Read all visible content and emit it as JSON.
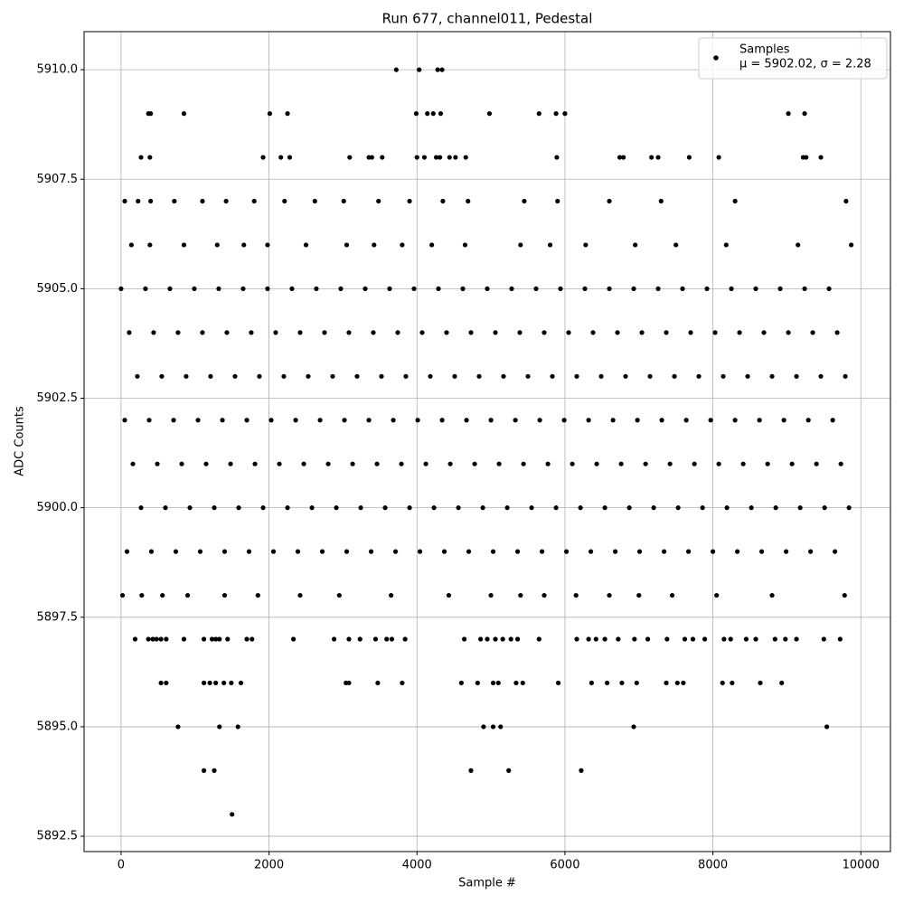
{
  "chart_data": {
    "type": "scatter",
    "title": "Run 677, channel011, Pedestal",
    "x_label": "Sample #",
    "y_label": "ADC Counts",
    "legend_note": "μ = 5902.02, σ = 2.28",
    "legend_position": "upper right",
    "grid": true,
    "xlim": [
      -500,
      10400
    ],
    "ylim": [
      5892.15,
      5910.87
    ],
    "xticks": [
      0,
      2000,
      4000,
      6000,
      8000,
      10000
    ],
    "yticks": [
      {
        "value": 5892.5,
        "label": "5892.5"
      },
      {
        "value": 5895,
        "label": "5895.0"
      },
      {
        "value": 5897.5,
        "label": "5897.5"
      },
      {
        "value": 5900,
        "label": "5900.0"
      },
      {
        "value": 5902.5,
        "label": "5902.5"
      },
      {
        "value": 5905,
        "label": "5905.0"
      },
      {
        "value": 5907.5,
        "label": "5907.5"
      },
      {
        "value": 5910,
        "label": "5910.0"
      }
    ],
    "x": [
      3720,
      4030,
      4280,
      4340,
      370,
      400,
      850,
      2010,
      2250,
      3990,
      4140,
      4220,
      4320,
      4980,
      5650,
      5880,
      6000,
      9020,
      9240,
      270,
      390,
      1920,
      2160,
      2280,
      3090,
      3350,
      3390,
      3530,
      4000,
      4100,
      4260,
      4310,
      4440,
      4520,
      4660,
      5890,
      6740,
      6790,
      7170,
      7260,
      7680,
      8080,
      9220,
      9260,
      9460,
      50,
      230,
      400,
      720,
      1100,
      1420,
      1800,
      2210,
      2620,
      3010,
      3480,
      3900,
      4350,
      4690,
      5450,
      5900,
      6600,
      7300,
      8300,
      9800,
      140,
      390,
      850,
      1300,
      1660,
      1980,
      2500,
      3050,
      3420,
      3800,
      4200,
      4650,
      5400,
      5800,
      6280,
      6950,
      7500,
      8180,
      9150,
      9870,
      0,
      330,
      660,
      990,
      1320,
      1650,
      1980,
      2310,
      2640,
      2970,
      3300,
      3630,
      3960,
      4290,
      4620,
      4950,
      5280,
      5610,
      5940,
      6270,
      6600,
      6930,
      7260,
      7590,
      7920,
      8250,
      8580,
      8910,
      9240,
      9570,
      110,
      440,
      770,
      1100,
      1430,
      1760,
      2090,
      2420,
      2750,
      3080,
      3410,
      3740,
      4070,
      4400,
      4730,
      5060,
      5390,
      5720,
      6050,
      6380,
      6710,
      7040,
      7370,
      7700,
      8030,
      8360,
      8690,
      9020,
      9350,
      9680,
      220,
      550,
      880,
      1210,
      1540,
      1870,
      2200,
      2530,
      2860,
      3190,
      3520,
      3850,
      4180,
      4510,
      4840,
      5170,
      5500,
      5830,
      6160,
      6490,
      6820,
      7150,
      7480,
      7810,
      8140,
      8470,
      8800,
      9130,
      9460,
      9790,
      50,
      380,
      710,
      1040,
      1370,
      1700,
      2030,
      2360,
      2690,
      3020,
      3350,
      3680,
      4010,
      4340,
      4670,
      5000,
      5330,
      5660,
      5990,
      6320,
      6650,
      6980,
      7310,
      7640,
      7970,
      8300,
      8630,
      8960,
      9290,
      9620,
      160,
      490,
      820,
      1150,
      1480,
      1810,
      2140,
      2470,
      2800,
      3130,
      3460,
      3790,
      4120,
      4450,
      4780,
      5110,
      5440,
      5770,
      6100,
      6430,
      6760,
      7090,
      7420,
      7750,
      8080,
      8410,
      8740,
      9070,
      9400,
      9730,
      270,
      600,
      930,
      1260,
      1590,
      1920,
      2250,
      2580,
      2910,
      3240,
      3570,
      3900,
      4230,
      4560,
      4890,
      5220,
      5550,
      5880,
      6210,
      6540,
      6870,
      7200,
      7530,
      7860,
      8190,
      8520,
      8850,
      9180,
      9510,
      9840,
      80,
      410,
      740,
      1070,
      1400,
      1730,
      2060,
      2390,
      2720,
      3050,
      3380,
      3710,
      4040,
      4370,
      4700,
      5030,
      5360,
      5690,
      6020,
      6350,
      6680,
      7010,
      7340,
      7670,
      8000,
      8330,
      8660,
      8990,
      9320,
      9650,
      20,
      280,
      560,
      900,
      1400,
      1850,
      2420,
      2950,
      3650,
      4430,
      5000,
      5400,
      5720,
      6150,
      6600,
      7000,
      7450,
      8050,
      8800,
      9780,
      190,
      370,
      430,
      480,
      540,
      610,
      850,
      1120,
      1230,
      1280,
      1330,
      1440,
      1700,
      1770,
      2330,
      2880,
      3080,
      3230,
      3440,
      3590,
      3660,
      3840,
      4640,
      4860,
      4950,
      5060,
      5160,
      5270,
      5360,
      5650,
      6160,
      6320,
      6420,
      6540,
      6720,
      6940,
      7120,
      7380,
      7620,
      7730,
      7890,
      8150,
      8240,
      8450,
      8580,
      8840,
      8980,
      9130,
      9500,
      9720,
      540,
      610,
      1120,
      1200,
      1280,
      1390,
      1490,
      1620,
      3040,
      3080,
      3470,
      3800,
      4600,
      4820,
      5030,
      5100,
      5340,
      5430,
      5910,
      6360,
      6570,
      6770,
      6970,
      7370,
      7520,
      7600,
      8130,
      8260,
      8640,
      8930,
      770,
      1330,
      1580,
      4900,
      5030,
      5130,
      6930,
      9540,
      1120,
      1260,
      4730,
      5240,
      6220,
      1500
    ],
    "series": [
      {
        "name": "Samples",
        "color": "#000000",
        "values": [
          5910,
          5910,
          5910,
          5910,
          5909,
          5909,
          5909,
          5909,
          5909,
          5909,
          5909,
          5909,
          5909,
          5909,
          5909,
          5909,
          5909,
          5909,
          5909,
          5908,
          5908,
          5908,
          5908,
          5908,
          5908,
          5908,
          5908,
          5908,
          5908,
          5908,
          5908,
          5908,
          5908,
          5908,
          5908,
          5908,
          5908,
          5908,
          5908,
          5908,
          5908,
          5908,
          5908,
          5908,
          5908,
          5907,
          5907,
          5907,
          5907,
          5907,
          5907,
          5907,
          5907,
          5907,
          5907,
          5907,
          5907,
          5907,
          5907,
          5907,
          5907,
          5907,
          5907,
          5907,
          5907,
          5906,
          5906,
          5906,
          5906,
          5906,
          5906,
          5906,
          5906,
          5906,
          5906,
          5906,
          5906,
          5906,
          5906,
          5906,
          5906,
          5906,
          5906,
          5906,
          5906,
          5905,
          5905,
          5905,
          5905,
          5905,
          5905,
          5905,
          5905,
          5905,
          5905,
          5905,
          5905,
          5905,
          5905,
          5905,
          5905,
          5905,
          5905,
          5905,
          5905,
          5905,
          5905,
          5905,
          5905,
          5905,
          5905,
          5905,
          5905,
          5905,
          5905,
          5904,
          5904,
          5904,
          5904,
          5904,
          5904,
          5904,
          5904,
          5904,
          5904,
          5904,
          5904,
          5904,
          5904,
          5904,
          5904,
          5904,
          5904,
          5904,
          5904,
          5904,
          5904,
          5904,
          5904,
          5904,
          5904,
          5904,
          5904,
          5904,
          5904,
          5903,
          5903,
          5903,
          5903,
          5903,
          5903,
          5903,
          5903,
          5903,
          5903,
          5903,
          5903,
          5903,
          5903,
          5903,
          5903,
          5903,
          5903,
          5903,
          5903,
          5903,
          5903,
          5903,
          5903,
          5903,
          5903,
          5903,
          5903,
          5903,
          5903,
          5902,
          5902,
          5902,
          5902,
          5902,
          5902,
          5902,
          5902,
          5902,
          5902,
          5902,
          5902,
          5902,
          5902,
          5902,
          5902,
          5902,
          5902,
          5902,
          5902,
          5902,
          5902,
          5902,
          5902,
          5902,
          5902,
          5902,
          5902,
          5902,
          5902,
          5901,
          5901,
          5901,
          5901,
          5901,
          5901,
          5901,
          5901,
          5901,
          5901,
          5901,
          5901,
          5901,
          5901,
          5901,
          5901,
          5901,
          5901,
          5901,
          5901,
          5901,
          5901,
          5901,
          5901,
          5901,
          5901,
          5901,
          5901,
          5901,
          5901,
          5900,
          5900,
          5900,
          5900,
          5900,
          5900,
          5900,
          5900,
          5900,
          5900,
          5900,
          5900,
          5900,
          5900,
          5900,
          5900,
          5900,
          5900,
          5900,
          5900,
          5900,
          5900,
          5900,
          5900,
          5900,
          5900,
          5900,
          5900,
          5900,
          5900,
          5899,
          5899,
          5899,
          5899,
          5899,
          5899,
          5899,
          5899,
          5899,
          5899,
          5899,
          5899,
          5899,
          5899,
          5899,
          5899,
          5899,
          5899,
          5899,
          5899,
          5899,
          5899,
          5899,
          5899,
          5899,
          5899,
          5899,
          5899,
          5899,
          5899,
          5898,
          5898,
          5898,
          5898,
          5898,
          5898,
          5898,
          5898,
          5898,
          5898,
          5898,
          5898,
          5898,
          5898,
          5898,
          5898,
          5898,
          5898,
          5898,
          5898,
          5897,
          5897,
          5897,
          5897,
          5897,
          5897,
          5897,
          5897,
          5897,
          5897,
          5897,
          5897,
          5897,
          5897,
          5897,
          5897,
          5897,
          5897,
          5897,
          5897,
          5897,
          5897,
          5897,
          5897,
          5897,
          5897,
          5897,
          5897,
          5897,
          5897,
          5897,
          5897,
          5897,
          5897,
          5897,
          5897,
          5897,
          5897,
          5897,
          5897,
          5897,
          5897,
          5897,
          5897,
          5897,
          5897,
          5897,
          5897,
          5897,
          5897,
          5896,
          5896,
          5896,
          5896,
          5896,
          5896,
          5896,
          5896,
          5896,
          5896,
          5896,
          5896,
          5896,
          5896,
          5896,
          5896,
          5896,
          5896,
          5896,
          5896,
          5896,
          5896,
          5896,
          5896,
          5896,
          5896,
          5896,
          5896,
          5896,
          5896,
          5895,
          5895,
          5895,
          5895,
          5895,
          5895,
          5895,
          5895,
          5894,
          5894,
          5894,
          5894,
          5894,
          5893
        ]
      }
    ]
  }
}
